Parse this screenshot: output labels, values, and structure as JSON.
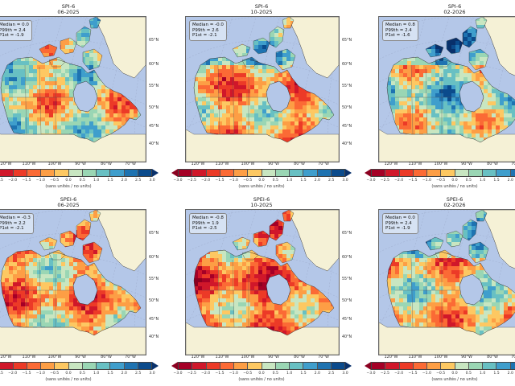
{
  "figure": {
    "index_rows": [
      "SPI-6",
      "SPEI-6"
    ],
    "period_columns": [
      "06-2025",
      "10-2025",
      "02-2026"
    ]
  },
  "panels": [
    {
      "index": "SPI-6",
      "period": "06-2025",
      "stats": {
        "median": "Median = 0.0",
        "p99": "P99th = 2.4",
        "p1": "P1st = -1.9"
      },
      "stats_visible": {
        "median": "dian = 0.0",
        "p99": "th = 2.4",
        "p1": "= -1.9"
      }
    },
    {
      "index": "SPI-6",
      "period": "10-2025",
      "stats": {
        "median": "Median = -0.0",
        "p99": "P99th = 2.6",
        "p1": "P1st = -2.1"
      }
    },
    {
      "index": "SPI-6",
      "period": "02-2026",
      "stats": {
        "median": "Median = 0.8",
        "p99": "P99th = 2.4",
        "p1": "P1st = -1.6"
      }
    },
    {
      "index": "SPEI-6",
      "period": "06-2025",
      "stats": {
        "median": "Median = -0.3",
        "p99": "P99th = 2.2",
        "p1": "P1st = -2.1"
      },
      "stats_visible": {
        "median": "dian = -0.3",
        "p99": "th = 2.2",
        "p1": "= -2.1"
      }
    },
    {
      "index": "SPEI-6",
      "period": "10-2025",
      "stats": {
        "median": "Median = -0.8",
        "p99": "P99th = 1.9",
        "p1": "P1st = -2.5"
      }
    },
    {
      "index": "SPEI-6",
      "period": "02-2026",
      "stats": {
        "median": "Median = 0.0",
        "p99": "P99th = 2.4",
        "p1": "P1st = -1.9"
      }
    }
  ],
  "axes": {
    "lat_labels": [
      "65°N",
      "60°N",
      "55°N",
      "50°N",
      "45°N",
      "40°N"
    ],
    "lon_labels": [
      "120°W",
      "110°W",
      "100°W",
      "90°W",
      "80°W",
      "70°W"
    ]
  },
  "colorbar": {
    "ticks": [
      "−3.0",
      "−2.5",
      "−2.0",
      "−1.5",
      "−1.0",
      "−0.5",
      "0.0",
      "0.5",
      "1.0",
      "1.5",
      "2.0",
      "2.5",
      "3.0"
    ],
    "units_label": "(sans unités / no units)",
    "colors": [
      "#a50026",
      "#d0172a",
      "#ec3a27",
      "#fb6a35",
      "#fd9e45",
      "#fdc862",
      "#c8e6c1",
      "#9ad6b4",
      "#68c0c3",
      "#3f9ecc",
      "#1e73b1",
      "#0b4b8c"
    ],
    "under_color": "#8b0020",
    "over_color": "#08306b",
    "extend": "both"
  },
  "colors": {
    "ocean": "#b4c7e8",
    "land_outside": "#f5f1d6",
    "greenland": "#f5f1d6"
  },
  "chart_data": [
    {
      "type": "heatmap",
      "title": "SPI-6 06-2025",
      "median": 0.0,
      "p99": 2.4,
      "p1": -1.9,
      "colorbar_range": [
        -3.0,
        3.0
      ],
      "colorbar_label": "(sans unités / no units)"
    },
    {
      "type": "heatmap",
      "title": "SPI-6 10-2025",
      "median": -0.0,
      "p99": 2.6,
      "p1": -2.1,
      "colorbar_range": [
        -3.0,
        3.0
      ],
      "colorbar_label": "(sans unités / no units)"
    },
    {
      "type": "heatmap",
      "title": "SPI-6 02-2026",
      "median": 0.8,
      "p99": 2.4,
      "p1": -1.6,
      "colorbar_range": [
        -3.0,
        3.0
      ],
      "colorbar_label": "(sans unités / no units)"
    },
    {
      "type": "heatmap",
      "title": "SPEI-6 06-2025",
      "median": -0.3,
      "p99": 2.2,
      "p1": -2.1,
      "colorbar_range": [
        -3.0,
        3.0
      ],
      "colorbar_label": "(sans unités / no units)"
    },
    {
      "type": "heatmap",
      "title": "SPEI-6 10-2025",
      "median": -0.8,
      "p99": 1.9,
      "p1": -2.5,
      "colorbar_range": [
        -3.0,
        3.0
      ],
      "colorbar_label": "(sans unités / no units)"
    },
    {
      "type": "heatmap",
      "title": "SPEI-6 02-2026",
      "median": 0.0,
      "p99": 2.4,
      "p1": -1.9,
      "colorbar_range": [
        -3.0,
        3.0
      ],
      "colorbar_label": "(sans unités / no units)"
    }
  ]
}
